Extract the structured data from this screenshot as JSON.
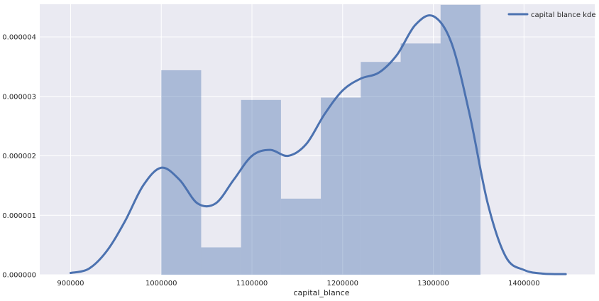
{
  "chart_data": {
    "type": "histogram",
    "xlabel": "capital_blance",
    "ylabel": "",
    "xlim": [
      866000,
      1478000
    ],
    "ylim": [
      0,
      4.55e-06
    ],
    "x_ticks": [
      900000,
      1000000,
      1100000,
      1200000,
      1300000,
      1400000
    ],
    "x_tick_labels": [
      "900000",
      "1000000",
      "1100000",
      "1200000",
      "1300000",
      "1400000"
    ],
    "y_ticks": [
      0,
      1e-06,
      2e-06,
      3e-06,
      4e-06
    ],
    "y_tick_labels": [
      "0.000000",
      "0.000001",
      "0.000002",
      "0.000003",
      "0.000004"
    ],
    "grid": true,
    "legend_position": "top-right",
    "histogram": {
      "bin_edges": [
        1000000,
        1044000,
        1088000,
        1132000,
        1176000,
        1220000,
        1264000,
        1308000,
        1352000
      ],
      "densities": [
        3.44e-06,
        4.6e-07,
        2.94e-06,
        1.28e-06,
        2.98e-06,
        3.58e-06,
        3.89e-06,
        4.54e-06
      ],
      "color": "#4c72b0",
      "alpha": 0.4
    },
    "series": [
      {
        "name": "capital blance kde",
        "type": "line",
        "color": "#4c72b0",
        "x": [
          900000,
          920000,
          940000,
          960000,
          980000,
          1000000,
          1020000,
          1040000,
          1060000,
          1080000,
          1100000,
          1120000,
          1140000,
          1160000,
          1180000,
          1200000,
          1220000,
          1240000,
          1260000,
          1280000,
          1300000,
          1320000,
          1340000,
          1360000,
          1380000,
          1400000,
          1420000,
          1446000
        ],
        "y": [
          3e-08,
          1e-07,
          4e-07,
          9e-07,
          1.5e-06,
          1.8e-06,
          1.6e-06,
          1.2e-06,
          1.2e-06,
          1.6e-06,
          2e-06,
          2.1e-06,
          2e-06,
          2.2e-06,
          2.7e-06,
          3.1e-06,
          3.3e-06,
          3.4e-06,
          3.7e-06,
          4.2e-06,
          4.35e-06,
          3.9e-06,
          2.7e-06,
          1.2e-06,
          3e-07,
          8e-08,
          2e-08,
          1e-08
        ]
      }
    ]
  }
}
